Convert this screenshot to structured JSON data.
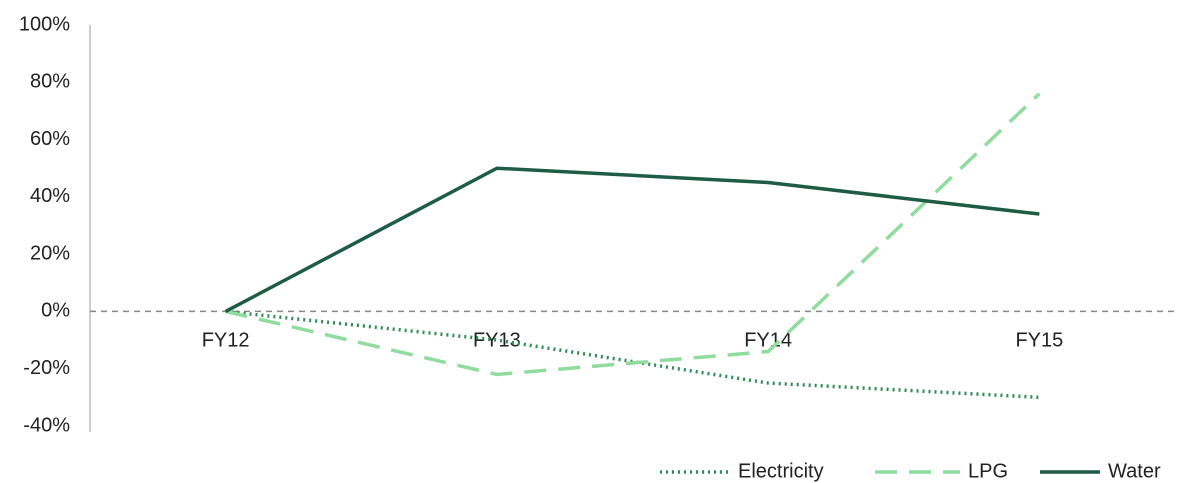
{
  "chart_data": {
    "type": "line",
    "categories": [
      "FY12",
      "FY13",
      "FY14",
      "FY15"
    ],
    "series": [
      {
        "name": "Electricity",
        "color": "#2e8b57",
        "dash": "dotted",
        "values": [
          0,
          -10,
          -25,
          -30
        ]
      },
      {
        "name": "LPG",
        "color": "#8fdc9e",
        "dash": "dashed",
        "values": [
          0,
          -22,
          -14,
          76
        ]
      },
      {
        "name": "Water",
        "color": "#1e5c45",
        "dash": "solid",
        "values": [
          0,
          50,
          45,
          34
        ]
      }
    ],
    "ylim": [
      -40,
      100
    ],
    "yticks": [
      {
        "value": -40,
        "label": "-40%"
      },
      {
        "value": -20,
        "label": "-20%"
      },
      {
        "value": 0,
        "label": "0%"
      },
      {
        "value": 20,
        "label": "20%"
      },
      {
        "value": 40,
        "label": "40%"
      },
      {
        "value": 60,
        "label": "60%"
      },
      {
        "value": 80,
        "label": "80%"
      },
      {
        "value": 100,
        "label": "100%"
      }
    ],
    "legend": "bottom-right"
  }
}
